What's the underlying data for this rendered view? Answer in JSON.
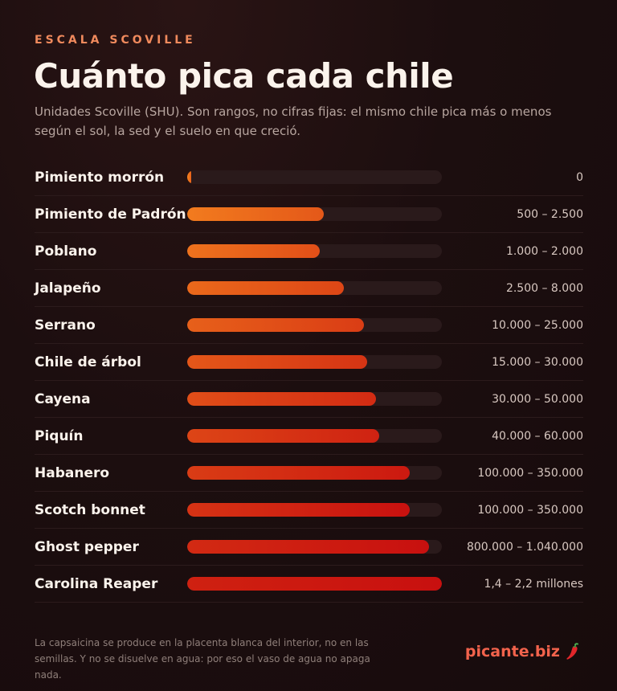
{
  "header": {
    "kicker": "ESCALA SCOVILLE",
    "title": "Cuánto pica cada chile",
    "subtitle": "Unidades Scoville (SHU). Son rangos, no cifras fijas: el mismo chile pica más o menos según el sol, la sed y el suelo en que creció."
  },
  "chart_data": {
    "type": "bar",
    "orientation": "horizontal",
    "scale": "log",
    "title": "Cuánto pica cada chile",
    "unit": "SHU",
    "categories": [
      "Pimiento morrón",
      "Pimiento de Padrón",
      "Poblano",
      "Jalapeño",
      "Serrano",
      "Chile de árbol",
      "Cayena",
      "Piquín",
      "Habanero",
      "Scotch bonnet",
      "Ghost pepper",
      "Carolina Reaper"
    ],
    "range_labels": [
      "0",
      "500 – 2.500",
      "1.000 – 2.000",
      "2.500 – 8.000",
      "10.000 – 25.000",
      "15.000 – 30.000",
      "30.000 – 50.000",
      "40.000 – 60.000",
      "100.000 – 350.000",
      "100.000 – 350.000",
      "800.000 – 1.040.000",
      "1,4 – 2,2 millones"
    ],
    "ranges": [
      [
        0,
        0
      ],
      [
        500,
        2500
      ],
      [
        1000,
        2000
      ],
      [
        2500,
        8000
      ],
      [
        10000,
        25000
      ],
      [
        15000,
        30000
      ],
      [
        30000,
        50000
      ],
      [
        40000,
        60000
      ],
      [
        100000,
        350000
      ],
      [
        100000,
        350000
      ],
      [
        800000,
        1040000
      ],
      [
        1400000,
        2200000
      ]
    ],
    "colors": {
      "low": "#f5841f",
      "high": "#c8100f",
      "track": "#2a1a1b"
    }
  },
  "footer": {
    "note": "La capsaicina se produce en la placenta blanca del interior, no en las semillas. Y no se disuelve en agua: por eso el vaso de agua no apaga nada.",
    "brand": "picante.biz",
    "brand_icon": "chili-pepper-icon"
  }
}
